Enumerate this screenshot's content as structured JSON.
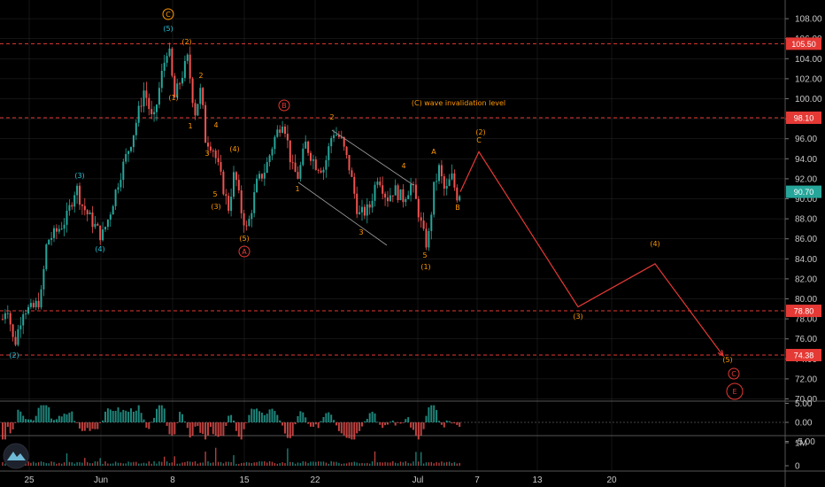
{
  "chart_data": {
    "type": "line",
    "title": "",
    "ylim": [
      69,
      110
    ],
    "y_ticks": [
      "108.00",
      "106.00",
      "104.00",
      "102.00",
      "100.00",
      "98.00",
      "96.00",
      "94.00",
      "92.00",
      "90.00",
      "88.00",
      "86.00",
      "84.00",
      "82.00",
      "80.00",
      "78.00",
      "76.00",
      "74.00",
      "72.00",
      "70.00"
    ],
    "x_ticks": [
      "25",
      "Jun",
      "8",
      "15",
      "22",
      "Jul",
      "7",
      "13",
      "20"
    ],
    "price_levels": [
      {
        "value": 105.5,
        "label": "105.50",
        "color": "#e53935"
      },
      {
        "value": 98.1,
        "label": "98.10",
        "color": "#e53935"
      },
      {
        "value": 78.8,
        "label": "78.80",
        "color": "#e53935"
      },
      {
        "value": 74.38,
        "label": "74.38",
        "color": "#e53935"
      }
    ],
    "last_price": {
      "value": 90.7,
      "label": "90.70",
      "color": "#26a69a"
    },
    "price_path": [
      [
        0,
        77
      ],
      [
        8,
        79.6
      ],
      [
        16,
        75.2
      ],
      [
        26,
        79
      ],
      [
        36,
        78.9
      ],
      [
        46,
        80
      ],
      [
        53,
        85.8
      ],
      [
        62,
        86.5
      ],
      [
        75,
        88
      ],
      [
        86,
        91.3
      ],
      [
        92,
        89.5
      ],
      [
        100,
        88.3
      ],
      [
        115,
        86.2
      ],
      [
        123,
        88.2
      ],
      [
        135,
        92.2
      ],
      [
        150,
        96.3
      ],
      [
        163,
        101
      ],
      [
        173,
        97.4
      ],
      [
        182,
        102.1
      ],
      [
        190,
        105.5
      ],
      [
        197,
        100
      ],
      [
        205,
        102.2
      ],
      [
        212,
        104
      ],
      [
        220,
        98.5
      ],
      [
        227,
        101
      ],
      [
        232,
        96
      ],
      [
        240,
        95.3
      ],
      [
        247,
        93
      ],
      [
        258,
        89
      ],
      [
        265,
        92.8
      ],
      [
        272,
        89
      ],
      [
        279,
        86.8
      ],
      [
        290,
        91.5
      ],
      [
        300,
        93
      ],
      [
        310,
        96
      ],
      [
        320,
        98.1
      ],
      [
        330,
        93
      ],
      [
        337,
        92.2
      ],
      [
        345,
        95.5
      ],
      [
        356,
        93.5
      ],
      [
        366,
        93
      ],
      [
        376,
        96.8
      ],
      [
        385,
        96
      ],
      [
        395,
        93
      ],
      [
        405,
        88.3
      ],
      [
        417,
        89
      ],
      [
        427,
        92.5
      ],
      [
        437,
        90
      ],
      [
        445,
        91
      ],
      [
        455,
        90
      ],
      [
        465,
        91.5
      ],
      [
        472,
        89
      ],
      [
        478,
        86.5
      ],
      [
        483,
        85.2
      ],
      [
        490,
        91
      ],
      [
        496,
        93
      ],
      [
        503,
        90.5
      ],
      [
        510,
        92.3
      ],
      [
        516,
        90.3
      ],
      [
        520,
        90.7
      ]
    ],
    "projection": [
      [
        520,
        90.7
      ],
      [
        541,
        94.7
      ],
      [
        653,
        79.2
      ],
      [
        740,
        83.5
      ],
      [
        817,
        74.3
      ]
    ],
    "channel_lines": [
      [
        [
          375,
          147
        ],
        [
          467,
          209
        ]
      ],
      [
        [
          337,
          206
        ],
        [
          437,
          277
        ]
      ]
    ],
    "wave_labels": [
      {
        "t": "(2)",
        "x": 16,
        "y": 404,
        "c": "#26c6da"
      },
      {
        "t": "(3)",
        "x": 90,
        "y": 201,
        "c": "#26c6da"
      },
      {
        "t": "(4)",
        "x": 113,
        "y": 284,
        "c": "#26c6da"
      },
      {
        "t": "(5)",
        "x": 190,
        "y": 35,
        "c": "#26c6da"
      },
      {
        "t": "(2)",
        "x": 211,
        "y": 50,
        "c": "#ff9800"
      },
      {
        "t": "(1)",
        "x": 196,
        "y": 113,
        "c": "#ff9800"
      },
      {
        "t": "2",
        "x": 227,
        "y": 88,
        "c": "#ff9800"
      },
      {
        "t": "1",
        "x": 215,
        "y": 145,
        "c": "#ff9800"
      },
      {
        "t": "4",
        "x": 244,
        "y": 144,
        "c": "#ff9800"
      },
      {
        "t": "3",
        "x": 234,
        "y": 176,
        "c": "#ff9800"
      },
      {
        "t": "(4)",
        "x": 265,
        "y": 171,
        "c": "#ff9800"
      },
      {
        "t": "5",
        "x": 243,
        "y": 222,
        "c": "#ff9800"
      },
      {
        "t": "(3)",
        "x": 244,
        "y": 236,
        "c": "#ff9800"
      },
      {
        "t": "(5)",
        "x": 276,
        "y": 272,
        "c": "#ff9800"
      },
      {
        "t": "2",
        "x": 375,
        "y": 135,
        "c": "#ff9800"
      },
      {
        "t": "1",
        "x": 336,
        "y": 216,
        "c": "#ff9800"
      },
      {
        "t": "4",
        "x": 456,
        "y": 190,
        "c": "#ff9800"
      },
      {
        "t": "3",
        "x": 408,
        "y": 265,
        "c": "#ff9800"
      },
      {
        "t": "5",
        "x": 480,
        "y": 291,
        "c": "#ff9800"
      },
      {
        "t": "(1)",
        "x": 481,
        "y": 304,
        "c": "#ff9800"
      },
      {
        "t": "A",
        "x": 490,
        "y": 174,
        "c": "#ff9800"
      },
      {
        "t": "B",
        "x": 517,
        "y": 237,
        "c": "#ff9800"
      },
      {
        "t": "(2)",
        "x": 543,
        "y": 152,
        "c": "#ff9800"
      },
      {
        "t": "C",
        "x": 541,
        "y": 161,
        "c": "#ff9800"
      },
      {
        "t": "(4)",
        "x": 740,
        "y": 278,
        "c": "#ff9800"
      },
      {
        "t": "(3)",
        "x": 653,
        "y": 360,
        "c": "#ff9800"
      },
      {
        "t": "(5)",
        "x": 822,
        "y": 409,
        "c": "#ff9800"
      }
    ],
    "circle_labels": [
      {
        "t": "C",
        "x": 190,
        "y": 16,
        "r": 6,
        "c": "#ff9800"
      },
      {
        "t": "A",
        "x": 276,
        "y": 284,
        "r": 6,
        "c": "#e53935"
      },
      {
        "t": "B",
        "x": 321,
        "y": 119,
        "r": 6,
        "c": "#e53935"
      },
      {
        "t": "C",
        "x": 829,
        "y": 422,
        "r": 6,
        "c": "#e53935"
      },
      {
        "t": "E",
        "x": 830,
        "y": 442,
        "r": 9,
        "c": "#e53935"
      }
    ],
    "annotation": {
      "text": "(C) wave invalidation level",
      "x": 518,
      "y": 119,
      "color": "#ff9800"
    },
    "indicator": {
      "ticks": [
        "5.00",
        "0.00",
        "-5.00"
      ]
    },
    "volume": {
      "ticks": [
        "1M",
        "0"
      ]
    },
    "colors": {
      "up": "#26a69a",
      "down": "#ef5350",
      "projection": "#e53935",
      "grid": "#2a2a2a"
    }
  }
}
